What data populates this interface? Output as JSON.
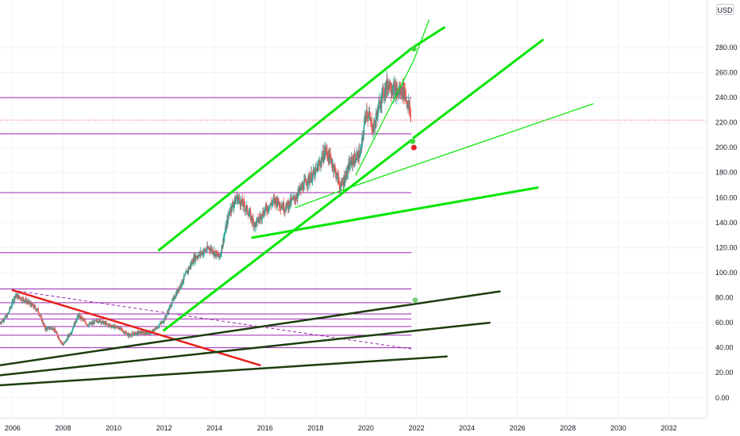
{
  "chart_data": {
    "type": "candlestick",
    "currency": "USD",
    "y_ticks": [
      0,
      20,
      40,
      60,
      80,
      100,
      120,
      140,
      160,
      180,
      200,
      220,
      240,
      260,
      280
    ],
    "x_ticks": [
      2006,
      2008,
      2010,
      2012,
      2014,
      2016,
      2018,
      2020,
      2022,
      2024,
      2026,
      2028,
      2030,
      2032
    ],
    "xlim": [
      2005.5,
      2033.5
    ],
    "ylim": [
      -16,
      318
    ],
    "last_price": 222,
    "grid": true,
    "colors": {
      "up": "#26a69a",
      "down": "#ef5350",
      "level": "#9c27b0",
      "channel": "#00e600",
      "support": "#1b3d0f",
      "downtrend": "#e8201c",
      "grid": "#f0f3fa"
    },
    "price_path": [
      [
        2005.5,
        60
      ],
      [
        2005.8,
        66
      ],
      [
        2006.1,
        82
      ],
      [
        2006.5,
        78
      ],
      [
        2007.0,
        70
      ],
      [
        2007.3,
        55
      ],
      [
        2007.6,
        56
      ],
      [
        2008.0,
        42
      ],
      [
        2008.3,
        52
      ],
      [
        2008.6,
        66
      ],
      [
        2009.0,
        58
      ],
      [
        2009.4,
        62
      ],
      [
        2009.8,
        58
      ],
      [
        2010.2,
        56
      ],
      [
        2010.6,
        50
      ],
      [
        2011.0,
        52
      ],
      [
        2011.5,
        52
      ],
      [
        2011.8,
        58
      ],
      [
        2012.0,
        62
      ],
      [
        2012.4,
        80
      ],
      [
        2012.8,
        96
      ],
      [
        2013.2,
        112
      ],
      [
        2013.8,
        120
      ],
      [
        2014.2,
        112
      ],
      [
        2014.6,
        150
      ],
      [
        2014.9,
        160
      ],
      [
        2015.3,
        150
      ],
      [
        2015.6,
        138
      ],
      [
        2016.0,
        150
      ],
      [
        2016.4,
        158
      ],
      [
        2016.8,
        152
      ],
      [
        2017.2,
        160
      ],
      [
        2017.6,
        172
      ],
      [
        2018.0,
        180
      ],
      [
        2018.4,
        198
      ],
      [
        2018.7,
        186
      ],
      [
        2019.0,
        168
      ],
      [
        2019.4,
        188
      ],
      [
        2019.8,
        196
      ],
      [
        2020.0,
        230
      ],
      [
        2020.3,
        215
      ],
      [
        2020.6,
        240
      ],
      [
        2020.9,
        252
      ],
      [
        2021.2,
        244
      ],
      [
        2021.5,
        246
      ],
      [
        2021.7,
        232
      ],
      [
        2021.8,
        222
      ]
    ],
    "horizontal_levels": [
      {
        "price": 240,
        "start": 2005.5,
        "end": 2021.8
      },
      {
        "price": 211,
        "start": 2005.5,
        "end": 2021.8
      },
      {
        "price": 164,
        "start": 2005.5,
        "end": 2021.8
      },
      {
        "price": 116,
        "start": 2005.5,
        "end": 2021.8
      },
      {
        "price": 87,
        "start": 2005.5,
        "end": 2021.8
      },
      {
        "price": 76,
        "start": 2005.5,
        "end": 2021.8
      },
      {
        "price": 67,
        "start": 2005.5,
        "end": 2021.8
      },
      {
        "price": 63,
        "start": 2005.5,
        "end": 2021.8
      },
      {
        "price": 57,
        "start": 2005.5,
        "end": 2021.8
      },
      {
        "price": 50,
        "start": 2005.5,
        "end": 2021.8
      },
      {
        "price": 40,
        "start": 2005.5,
        "end": 2021.8
      }
    ],
    "trendlines": [
      {
        "from": [
          2011.8,
          118
        ],
        "to": [
          2021.85,
          280
        ],
        "color": "channel",
        "width": 3
      },
      {
        "from": [
          2012.0,
          54
        ],
        "to": [
          2021.8,
          206
        ],
        "color": "channel",
        "width": 3
      },
      {
        "from": [
          2021.9,
          208
        ],
        "to": [
          2027.0,
          286
        ],
        "color": "channel",
        "width": 3
      },
      {
        "from": [
          2021.85,
          280
        ],
        "to": [
          2023.1,
          296
        ],
        "color": "channel",
        "width": 3
      },
      {
        "from": [
          2019.6,
          178
        ],
        "to": [
          2021.9,
          270
        ],
        "color": "channel",
        "width": 1.2
      },
      {
        "from": [
          2021.9,
          270
        ],
        "to": [
          2022.5,
          302
        ],
        "color": "channel",
        "width": 1.2
      },
      {
        "from": [
          2019.2,
          167
        ],
        "to": [
          2029.0,
          235
        ],
        "color": "channel",
        "width": 1.2
      },
      {
        "from": [
          2017.2,
          152
        ],
        "to": [
          2019.2,
          167
        ],
        "color": "channel",
        "width": 1.2
      },
      {
        "from": [
          2015.5,
          128
        ],
        "to": [
          2026.8,
          168
        ],
        "color": "channel",
        "width": 3
      },
      {
        "from": [
          2006.0,
          86
        ],
        "to": [
          2015.8,
          26
        ],
        "color": "downtrend",
        "width": 2.5
      },
      {
        "from": [
          2005.5,
          26
        ],
        "to": [
          2025.3,
          85
        ],
        "color": "support",
        "width": 2.5
      },
      {
        "from": [
          2005.5,
          18
        ],
        "to": [
          2024.9,
          60
        ],
        "color": "support",
        "width": 2.5
      },
      {
        "from": [
          2005.5,
          10
        ],
        "to": [
          2023.2,
          33
        ],
        "color": "support",
        "width": 2.5
      }
    ],
    "dashed_lines": [
      {
        "from": [
          2006.0,
          86
        ],
        "to": [
          2021.8,
          39
        ],
        "color": "level",
        "width": 1
      }
    ],
    "markers": [
      {
        "x": 2021.9,
        "y": 279,
        "color": "#3ddc3d"
      },
      {
        "x": 2021.85,
        "y": 205,
        "color": "#3ddc3d"
      },
      {
        "x": 2021.9,
        "y": 200,
        "color": "#e02020"
      },
      {
        "x": 2021.95,
        "y": 78,
        "color": "#7fcf7f"
      }
    ]
  }
}
